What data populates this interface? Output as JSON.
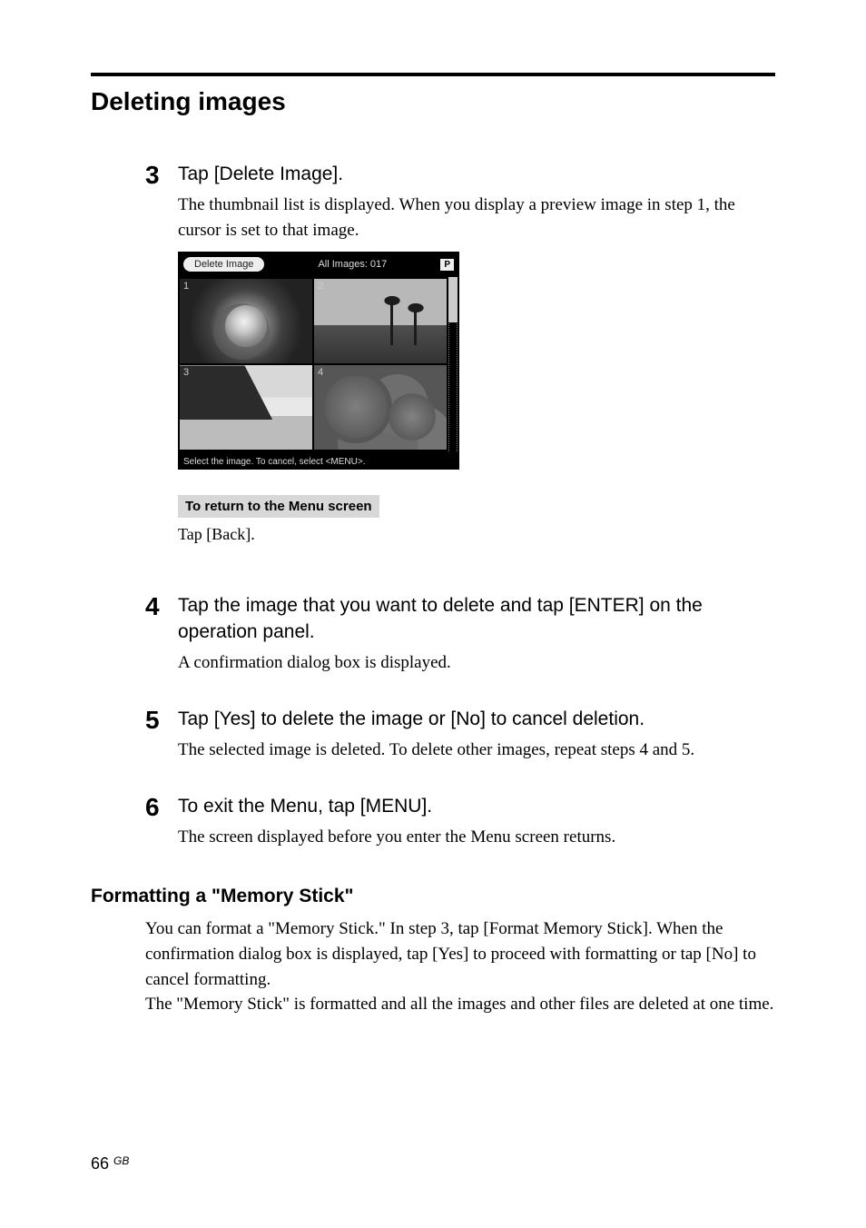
{
  "section_title": "Deleting images",
  "steps": {
    "s3": {
      "num": "3",
      "head": "Tap [Delete Image].",
      "desc": "The thumbnail list is displayed.  When you display a preview image in step 1, the cursor is set to that image."
    },
    "s4": {
      "num": "4",
      "head": "Tap the image that you want to delete and tap [ENTER] on the operation panel.",
      "desc": "A confirmation dialog box is displayed."
    },
    "s5": {
      "num": "5",
      "head": "Tap [Yes] to delete the image or [No] to cancel deletion.",
      "desc": "The selected image is deleted.  To delete other images, repeat steps 4 and 5."
    },
    "s6": {
      "num": "6",
      "head": "To exit the Menu, tap [MENU].",
      "desc": "The screen displayed before you enter the Menu screen returns."
    }
  },
  "screenshot": {
    "button": "Delete Image",
    "title": "All Images: 017",
    "badge": "P",
    "footer": "Select the image. To cancel, select <MENU>.",
    "cells": [
      "1",
      "2",
      "3",
      "4"
    ]
  },
  "note": {
    "label": "To return to the Menu screen",
    "text": "Tap [Back]."
  },
  "subsection": {
    "title": "Formatting a \"Memory Stick\"",
    "p1": "You can format a \"Memory Stick.\" In step 3, tap [Format Memory Stick]. When the confirmation dialog box is displayed, tap [Yes] to proceed with formatting or tap [No] to cancel formatting.",
    "p2": "The \"Memory Stick\" is formatted and all the images and other files are deleted at one time."
  },
  "page_number": "66",
  "page_gb": "GB"
}
